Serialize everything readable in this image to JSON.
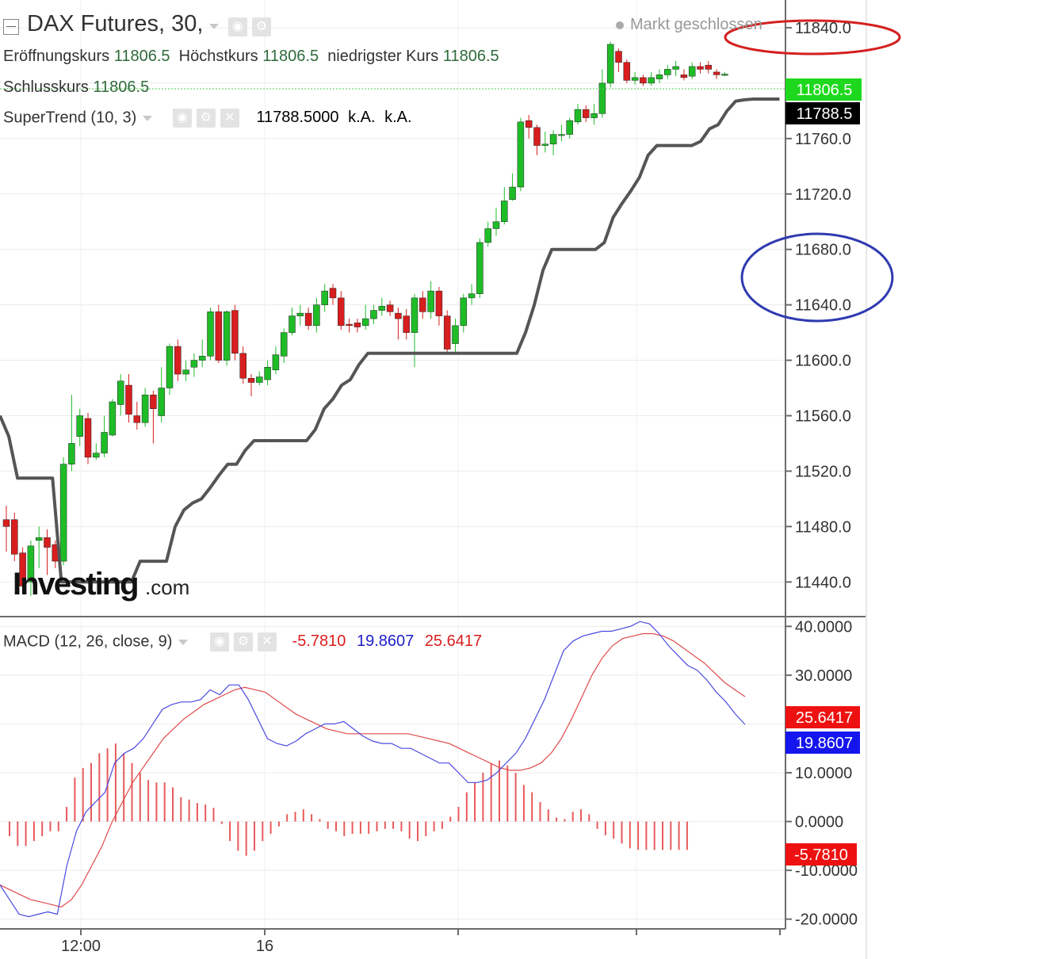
{
  "header": {
    "symbol_title": "DAX Futures, 30,",
    "status": "Markt geschlossen",
    "ohlc": [
      {
        "label": "Eröffnungskurs",
        "value": "11806.5"
      },
      {
        "label": "Höchstkurs",
        "value": "11806.5"
      },
      {
        "label": "niedrigster Kurs",
        "value": "11806.5"
      },
      {
        "label": "Schlusskurs",
        "value": "11806.5"
      }
    ]
  },
  "supertrend": {
    "label": "SuperTrend (10, 3)",
    "value": "11788.5000",
    "na1": "k.A.",
    "na2": "k.A."
  },
  "macd": {
    "label": "MACD (12, 26, close, 9)",
    "hist_value": "-5.7810",
    "macd_value": "19.8607",
    "signal_value": "25.6417"
  },
  "watermark": {
    "brand": "Investing",
    "suffix": ".com"
  },
  "colors": {
    "up": "#1ebc27",
    "down": "#d81e1e",
    "supertrend": "#555555",
    "macd_line": "#4a4ae0",
    "signal_line": "#e04a4a",
    "hist": "#e85a5a",
    "annotation_red": "#d42020",
    "annotation_blue": "#2f3bb0",
    "price_tag": "#1ed81e"
  },
  "chart_data": [
    {
      "type": "candlestick",
      "title": "DAX Futures, 30,",
      "ylim": [
        11415,
        11860
      ],
      "y_ticks": [
        "11840.0",
        "11760.0",
        "11720.0",
        "11680.0",
        "11640.0",
        "11600.0",
        "11560.0",
        "11520.0",
        "11480.0",
        "11440.0"
      ],
      "x_ticks": [
        "12:00",
        "16"
      ],
      "last_price_tag": "11806.5",
      "supertrend_tag": "11788.5",
      "annotations": [
        "red ellipse around 11840.0",
        "blue ellipse around 11680.0 and 11640.0"
      ],
      "candles": [
        [
          11485,
          11480,
          11495,
          11462
        ],
        [
          11485,
          11460,
          11490,
          11455
        ],
        [
          11461,
          11437,
          11465,
          11432
        ],
        [
          11440,
          11466,
          11470,
          11430
        ],
        [
          11470,
          11472,
          11480,
          11450
        ],
        [
          11472,
          11465,
          11478,
          11445
        ],
        [
          11467,
          11455,
          11470,
          11450
        ],
        [
          11455,
          11525,
          11530,
          11452
        ],
        [
          11525,
          11540,
          11575,
          11520
        ],
        [
          11545,
          11560,
          11565,
          11538
        ],
        [
          11558,
          11530,
          11562,
          11525
        ],
        [
          11530,
          11533,
          11540,
          11528
        ],
        [
          11533,
          11548,
          11560,
          11530
        ],
        [
          11546,
          11570,
          11572,
          11545
        ],
        [
          11568,
          11585,
          11590,
          11560
        ],
        [
          11582,
          11561,
          11590,
          11555
        ],
        [
          11560,
          11555,
          11570,
          11550
        ],
        [
          11555,
          11575,
          11580,
          11552
        ],
        [
          11575,
          11565,
          11578,
          11540
        ],
        [
          11560,
          11580,
          11595,
          11555
        ],
        [
          11580,
          11610,
          11612,
          11575
        ],
        [
          11610,
          11590,
          11615,
          11585
        ],
        [
          11590,
          11593,
          11600,
          11585
        ],
        [
          11595,
          11600,
          11605,
          11588
        ],
        [
          11600,
          11603,
          11615,
          11595
        ],
        [
          11603,
          11635,
          11638,
          11600
        ],
        [
          11635,
          11600,
          11640,
          11598
        ],
        [
          11600,
          11635,
          11636,
          11596
        ],
        [
          11636,
          11605,
          11640,
          11600
        ],
        [
          11605,
          11587,
          11610,
          11583
        ],
        [
          11587,
          11584,
          11590,
          11574
        ],
        [
          11584,
          11588,
          11592,
          11582
        ],
        [
          11586,
          11595,
          11600,
          11582
        ],
        [
          11593,
          11604,
          11610,
          11590
        ],
        [
          11603,
          11620,
          11623,
          11598
        ],
        [
          11620,
          11632,
          11638,
          11618
        ],
        [
          11632,
          11634,
          11640,
          11625
        ],
        [
          11634,
          11625,
          11638,
          11622
        ],
        [
          11625,
          11640,
          11645,
          11620
        ],
        [
          11640,
          11650,
          11655,
          11635
        ],
        [
          11652,
          11645,
          11655,
          11640
        ],
        [
          11645,
          11625,
          11650,
          11622
        ],
        [
          11626,
          11625,
          11630,
          11620
        ],
        [
          11627,
          11624,
          11630,
          11620
        ],
        [
          11625,
          11630,
          11640,
          11622
        ],
        [
          11630,
          11636,
          11640,
          11626
        ],
        [
          11636,
          11639,
          11645,
          11632
        ],
        [
          11640,
          11635,
          11643,
          11632
        ],
        [
          11634,
          11630,
          11638,
          11615
        ],
        [
          11632,
          11620,
          11637,
          11615
        ],
        [
          11620,
          11645,
          11648,
          11595
        ],
        [
          11645,
          11635,
          11650,
          11630
        ],
        [
          11635,
          11650,
          11657,
          11630
        ],
        [
          11650,
          11632,
          11653,
          11625
        ],
        [
          11632,
          11608,
          11636,
          11604
        ],
        [
          11612,
          11625,
          11630,
          11605
        ],
        [
          11625,
          11645,
          11648,
          11620
        ],
        [
          11645,
          11648,
          11655,
          11640
        ],
        [
          11648,
          11685,
          11688,
          11645
        ],
        [
          11685,
          11695,
          11700,
          11682
        ],
        [
          11695,
          11700,
          11710,
          11690
        ],
        [
          11700,
          11715,
          11725,
          11698
        ],
        [
          11716,
          11725,
          11735,
          11715
        ],
        [
          11725,
          11772,
          11775,
          11722
        ],
        [
          11773,
          11768,
          11777,
          11760
        ],
        [
          11768,
          11755,
          11770,
          11748
        ],
        [
          11755,
          11756,
          11765,
          11750
        ],
        [
          11756,
          11763,
          11766,
          11748
        ],
        [
          11763,
          11763,
          11770,
          11758
        ],
        [
          11763,
          11773,
          11775,
          11760
        ],
        [
          11772,
          11781,
          11785,
          11770
        ],
        [
          11781,
          11775,
          11784,
          11772
        ],
        [
          11775,
          11778,
          11785,
          11770
        ],
        [
          11778,
          11800,
          11810,
          11775
        ],
        [
          11800,
          11828,
          11830,
          11797
        ],
        [
          11823,
          11815,
          11825,
          11808
        ],
        [
          11815,
          11802,
          11817,
          11800
        ],
        [
          11802,
          11804,
          11808,
          11799
        ],
        [
          11804,
          11800,
          11806,
          11798
        ],
        [
          11800,
          11804,
          11808,
          11798
        ],
        [
          11803,
          11806,
          11810,
          11800
        ],
        [
          11806,
          11810,
          11813,
          11803
        ],
        [
          11810,
          11812,
          11816,
          11805
        ],
        [
          11806,
          11804,
          11810,
          11802
        ],
        [
          11805,
          11812,
          11815,
          11803
        ],
        [
          11812,
          11810,
          11815,
          11807
        ],
        [
          11813,
          11810,
          11816,
          11807
        ],
        [
          11808,
          11806,
          11810,
          11803
        ],
        [
          11806,
          11806.5,
          11808,
          11805
        ]
      ],
      "supertrend": [
        11560,
        11545,
        11515,
        11515,
        11515,
        11515,
        11515,
        11440,
        11440,
        11440,
        11440,
        11440,
        11440,
        11440,
        11440,
        11440,
        11455,
        11455,
        11455,
        11455,
        11480,
        11492,
        11497,
        11500,
        11508,
        11517,
        11525,
        11525,
        11535,
        11542,
        11542,
        11542,
        11542,
        11542,
        11542,
        11542,
        11550,
        11565,
        11572,
        11582,
        11586,
        11597,
        11605,
        11605,
        11605,
        11605,
        11605,
        11605,
        11605,
        11605,
        11605,
        11605,
        11605,
        11605,
        11605,
        11605,
        11605,
        11605,
        11605,
        11605,
        11620,
        11640,
        11665,
        11680,
        11680,
        11680,
        11680,
        11680,
        11680,
        11685,
        11703,
        11713,
        11722,
        11732,
        11748,
        11755,
        11755,
        11755,
        11755,
        11755,
        11758,
        11767,
        11770,
        11780,
        11787,
        11788,
        11788.5,
        11788.5,
        11788.5,
        11788.5
      ]
    },
    {
      "type": "macd",
      "title": "MACD (12, 26, close, 9)",
      "ylim": [
        -22,
        42
      ],
      "y_ticks": [
        "40.0000",
        "30.0000",
        "10.0000",
        "0.0000",
        "-10.0000",
        "-20.0000"
      ],
      "value_tags": {
        "signal": "25.6417",
        "macd": "19.8607",
        "histogram": "-5.7810"
      },
      "macd": [
        -13,
        -16,
        -19,
        -19.5,
        -19,
        -18.5,
        -19,
        -9,
        -2,
        2,
        4,
        6,
        12,
        14,
        15,
        17,
        20,
        23,
        24,
        24.5,
        24.5,
        25,
        27,
        26,
        28,
        28,
        25,
        21,
        17,
        16,
        15.5,
        16.5,
        18,
        19,
        20,
        20,
        20.5,
        19,
        17.5,
        16.5,
        16,
        16,
        15,
        15,
        14,
        13,
        12,
        12,
        10,
        8,
        8,
        8.5,
        10,
        12,
        14,
        17,
        21,
        25,
        30,
        35,
        37,
        38,
        38.5,
        39,
        39,
        39.5,
        40,
        41,
        40.5,
        38.5,
        36,
        34,
        32,
        31,
        29,
        26.5,
        24.5,
        22,
        19.9
      ],
      "signal": [
        -13,
        -14,
        -15,
        -16,
        -16.5,
        -17,
        -17.5,
        -16,
        -13,
        -9,
        -5,
        0,
        4,
        8,
        11,
        14,
        17,
        19,
        21,
        22.5,
        24,
        25,
        26,
        27,
        27.5,
        27,
        26.5,
        25,
        23.5,
        22,
        21,
        20,
        19,
        18.5,
        18,
        18,
        18,
        18,
        18,
        18,
        18,
        17.5,
        17,
        16.5,
        16,
        15,
        14,
        13,
        12,
        11,
        10.5,
        10.5,
        11,
        12,
        14,
        17,
        21,
        25.5,
        30,
        33.5,
        36,
        37.5,
        38,
        38.5,
        38.5,
        38,
        37,
        35.5,
        34,
        32.5,
        30.5,
        28.5,
        27,
        25.6
      ],
      "histogram": [
        -3,
        -5,
        -5,
        -4,
        -3,
        -2,
        -2,
        3,
        9,
        11,
        12,
        14,
        15,
        16,
        14,
        12,
        10,
        8.5,
        8,
        8,
        7,
        5,
        4.5,
        3.8,
        3.5,
        2.8,
        -0.5,
        -4,
        -6,
        -7,
        -6,
        -4,
        -2.5,
        -1,
        1.5,
        2,
        2.5,
        1.5,
        0.5,
        -1.5,
        -2,
        -3,
        -2.5,
        -2.5,
        -2.5,
        -2,
        -1.5,
        -1.5,
        -2,
        -3.5,
        -4,
        -3,
        -2,
        -1.5,
        1,
        3,
        6,
        8,
        10,
        12,
        12.5,
        11.5,
        10,
        7.5,
        6,
        4,
        2.5,
        0.8,
        0.5,
        2,
        2.5,
        1.5,
        -1.5,
        -2.8,
        -3.5,
        -4.5,
        -5.5,
        -5.8,
        -5.8,
        -5.8,
        -5.8,
        -5.8,
        -5.8,
        -5.8
      ]
    }
  ]
}
